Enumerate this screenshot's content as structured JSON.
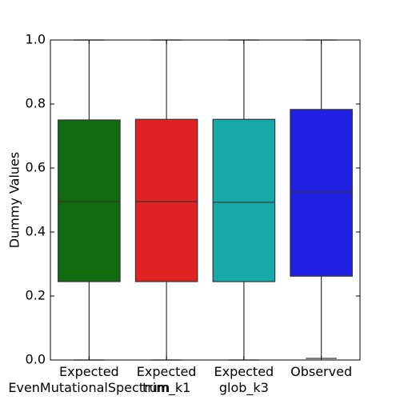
{
  "chart_data": {
    "type": "box",
    "title": "",
    "xlabel": "",
    "ylabel": "Dummy Values",
    "ylim": [
      0,
      1
    ],
    "yticks": [
      0.0,
      0.2,
      0.4,
      0.6,
      0.8,
      1.0
    ],
    "ytick_labels": [
      "0.0",
      "0.2",
      "0.4",
      "0.6",
      "0.8",
      "1.0"
    ],
    "grid": false,
    "categories": [
      {
        "lines": [
          "Expected",
          "EvenMutationalSpectrum"
        ]
      },
      {
        "lines": [
          "Expected",
          "trim_k1"
        ]
      },
      {
        "lines": [
          "Expected",
          "glob_k3"
        ]
      },
      {
        "lines": [
          "Observed"
        ]
      }
    ],
    "boxes": [
      {
        "whisker_low": 0.0,
        "q1": 0.245,
        "median": 0.495,
        "q3": 0.75,
        "whisker_high": 1.0,
        "color": "#0e6b0e"
      },
      {
        "whisker_low": 0.0,
        "q1": 0.245,
        "median": 0.495,
        "q3": 0.752,
        "whisker_high": 1.0,
        "color": "#e02222"
      },
      {
        "whisker_low": 0.0,
        "q1": 0.245,
        "median": 0.493,
        "q3": 0.752,
        "whisker_high": 1.0,
        "color": "#16a9a9"
      },
      {
        "whisker_low": 0.005,
        "q1": 0.262,
        "median": 0.525,
        "q3": 0.783,
        "whisker_high": 1.0,
        "color": "#2121e3"
      }
    ]
  }
}
